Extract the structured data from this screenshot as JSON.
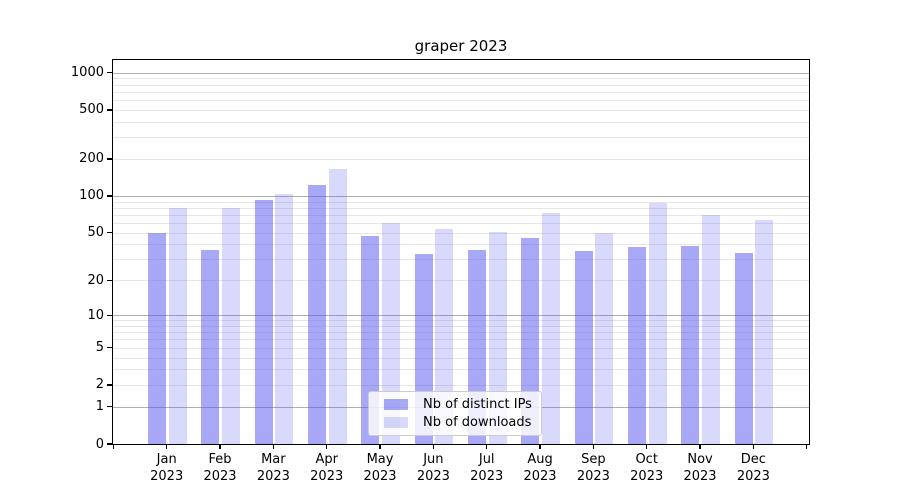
{
  "title": "graper 2023",
  "chart_data": {
    "type": "bar",
    "title": "graper 2023",
    "x": {
      "months": [
        "Jan",
        "Feb",
        "Mar",
        "Apr",
        "May",
        "Jun",
        "Jul",
        "Aug",
        "Sep",
        "Oct",
        "Nov",
        "Dec"
      ],
      "year": "2023"
    },
    "categories": [
      "Jan 2023",
      "Feb 2023",
      "Mar 2023",
      "Apr 2023",
      "May 2023",
      "Jun 2023",
      "Jul 2023",
      "Aug 2023",
      "Sep 2023",
      "Oct 2023",
      "Nov 2023",
      "Dec 2023"
    ],
    "series": [
      {
        "name": "Nb of distinct IPs",
        "color": "rgba(82,82,237,0.5)",
        "values": [
          50,
          36,
          92,
          123,
          47,
          33,
          36,
          45,
          35,
          38,
          39,
          34
        ]
      },
      {
        "name": "Nb of downloads",
        "color": "rgba(82,82,237,0.22)",
        "values": [
          80,
          80,
          103,
          165,
          60,
          54,
          51,
          72,
          50,
          88,
          70,
          64
        ]
      }
    ],
    "yscale": "log1p",
    "ylim": [
      0,
      1270
    ],
    "yticks": [
      0,
      1,
      2,
      5,
      10,
      20,
      50,
      100,
      200,
      500,
      1000
    ],
    "gridlines": {
      "major": [
        1,
        10,
        100,
        1000
      ],
      "minor": [
        2,
        3,
        4,
        5,
        6,
        7,
        8,
        9,
        20,
        30,
        40,
        50,
        60,
        70,
        80,
        90,
        200,
        300,
        400,
        500,
        600,
        700,
        800,
        900
      ]
    },
    "grid": true,
    "legend_position": "lower center",
    "colors": {
      "major_grid": "#b0b0b0",
      "minor_grid": "#e6e6e6",
      "axis": "#000000",
      "background": "#ffffff"
    }
  }
}
